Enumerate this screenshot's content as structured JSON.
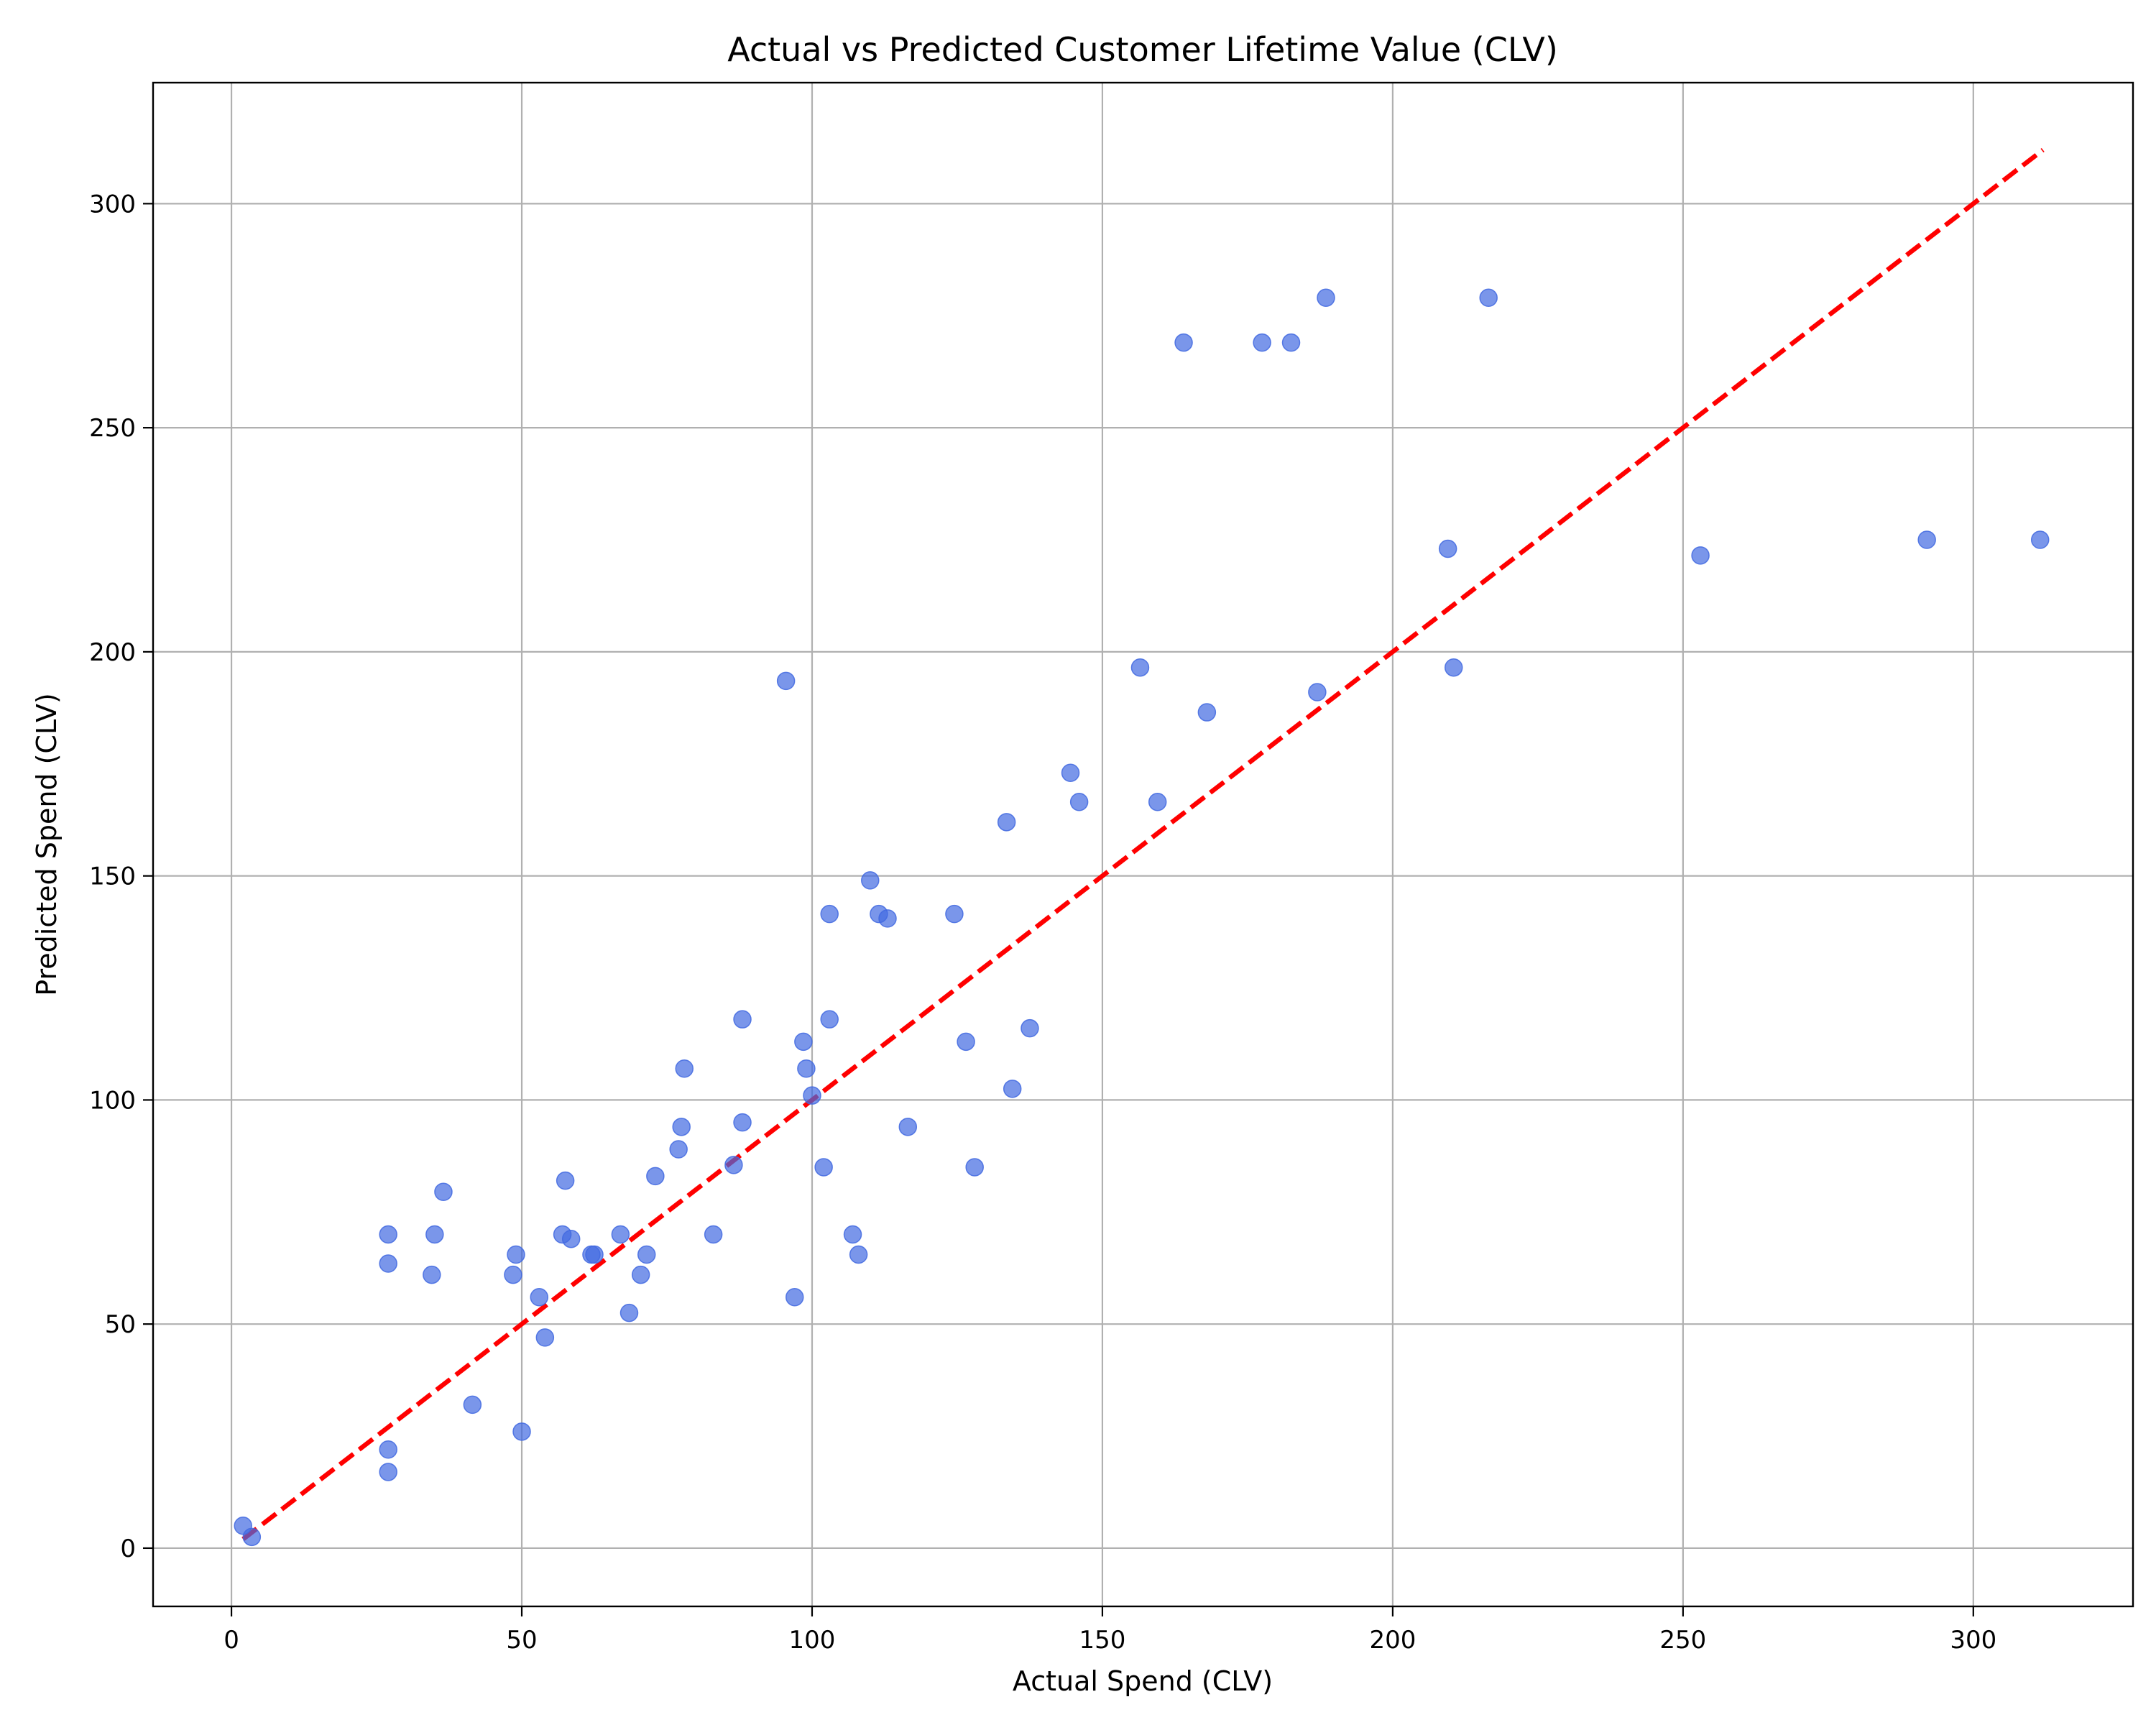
{
  "chart_data": {
    "type": "scatter",
    "title": "Actual vs Predicted Customer Lifetime Value (CLV)",
    "xlabel": "Actual Spend (CLV)",
    "ylabel": "Predicted Spend (CLV)",
    "xlim": [
      -13.5,
      327.5
    ],
    "ylim": [
      -13,
      327
    ],
    "xticks": [
      0,
      50,
      100,
      150,
      200,
      250,
      300
    ],
    "yticks": [
      0,
      50,
      100,
      150,
      200,
      250,
      300
    ],
    "grid": true,
    "point_color": "#4169e1",
    "reference_line": {
      "style": "dashed",
      "color": "#ff0000",
      "from": [
        2,
        2
      ],
      "to": [
        312,
        312
      ]
    },
    "points": [
      {
        "x": 2,
        "y": 5
      },
      {
        "x": 3.5,
        "y": 2.5
      },
      {
        "x": 27,
        "y": 22
      },
      {
        "x": 27,
        "y": 17
      },
      {
        "x": 27,
        "y": 70
      },
      {
        "x": 27,
        "y": 63.5
      },
      {
        "x": 34.5,
        "y": 61
      },
      {
        "x": 35,
        "y": 70
      },
      {
        "x": 36.5,
        "y": 79.5
      },
      {
        "x": 41.5,
        "y": 32
      },
      {
        "x": 48.5,
        "y": 61
      },
      {
        "x": 49,
        "y": 65.5
      },
      {
        "x": 50,
        "y": 26
      },
      {
        "x": 53,
        "y": 56
      },
      {
        "x": 54,
        "y": 47
      },
      {
        "x": 57,
        "y": 70
      },
      {
        "x": 57.5,
        "y": 82
      },
      {
        "x": 58.5,
        "y": 69
      },
      {
        "x": 62,
        "y": 65.5
      },
      {
        "x": 62.5,
        "y": 65.5
      },
      {
        "x": 67,
        "y": 70
      },
      {
        "x": 68.5,
        "y": 52.5
      },
      {
        "x": 70.5,
        "y": 61
      },
      {
        "x": 71.5,
        "y": 65.5
      },
      {
        "x": 73,
        "y": 83
      },
      {
        "x": 77,
        "y": 89
      },
      {
        "x": 77.5,
        "y": 94
      },
      {
        "x": 78,
        "y": 107
      },
      {
        "x": 83,
        "y": 70
      },
      {
        "x": 86.5,
        "y": 85.5
      },
      {
        "x": 88,
        "y": 118
      },
      {
        "x": 88,
        "y": 95
      },
      {
        "x": 95.5,
        "y": 193.5
      },
      {
        "x": 97,
        "y": 56
      },
      {
        "x": 98.5,
        "y": 113
      },
      {
        "x": 99,
        "y": 107
      },
      {
        "x": 100,
        "y": 101
      },
      {
        "x": 102,
        "y": 85
      },
      {
        "x": 103,
        "y": 141.5
      },
      {
        "x": 103,
        "y": 118
      },
      {
        "x": 107,
        "y": 70
      },
      {
        "x": 108,
        "y": 65.5
      },
      {
        "x": 110,
        "y": 149
      },
      {
        "x": 111.5,
        "y": 141.5
      },
      {
        "x": 113,
        "y": 140.5
      },
      {
        "x": 116.5,
        "y": 94
      },
      {
        "x": 124.5,
        "y": 141.5
      },
      {
        "x": 126.5,
        "y": 113
      },
      {
        "x": 128,
        "y": 85
      },
      {
        "x": 133.5,
        "y": 162
      },
      {
        "x": 134.5,
        "y": 102.5
      },
      {
        "x": 137.5,
        "y": 116
      },
      {
        "x": 144.5,
        "y": 173
      },
      {
        "x": 146,
        "y": 166.5
      },
      {
        "x": 156.5,
        "y": 196.5
      },
      {
        "x": 159.5,
        "y": 166.5
      },
      {
        "x": 164,
        "y": 269
      },
      {
        "x": 168,
        "y": 186.5
      },
      {
        "x": 177.5,
        "y": 269
      },
      {
        "x": 182.5,
        "y": 269
      },
      {
        "x": 187,
        "y": 191
      },
      {
        "x": 188.5,
        "y": 279
      },
      {
        "x": 209.5,
        "y": 223
      },
      {
        "x": 210.5,
        "y": 196.5
      },
      {
        "x": 216.5,
        "y": 279
      },
      {
        "x": 253,
        "y": 221.5
      },
      {
        "x": 292,
        "y": 225
      },
      {
        "x": 311.5,
        "y": 225
      }
    ]
  }
}
